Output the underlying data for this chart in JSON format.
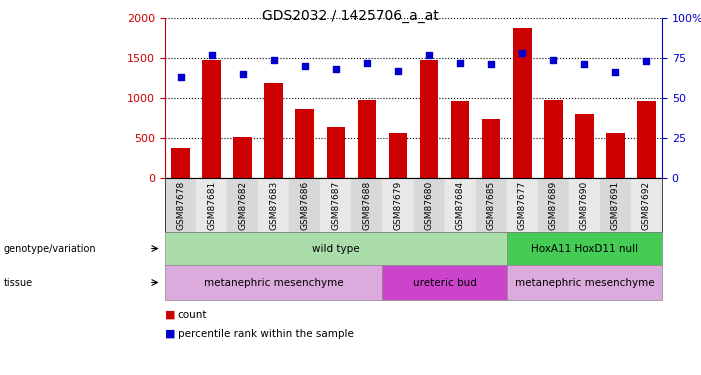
{
  "title": "GDS2032 / 1425706_a_at",
  "samples": [
    "GSM87678",
    "GSM87681",
    "GSM87682",
    "GSM87683",
    "GSM87686",
    "GSM87687",
    "GSM87688",
    "GSM87679",
    "GSM87680",
    "GSM87684",
    "GSM87685",
    "GSM87677",
    "GSM87689",
    "GSM87690",
    "GSM87691",
    "GSM87692"
  ],
  "counts": [
    370,
    1470,
    510,
    1190,
    860,
    635,
    970,
    560,
    1480,
    960,
    740,
    1870,
    970,
    800,
    560,
    960
  ],
  "percentiles": [
    63,
    77,
    65,
    74,
    70,
    68,
    72,
    67,
    77,
    72,
    71,
    78,
    74,
    71,
    66,
    73
  ],
  "bar_color": "#cc0000",
  "dot_color": "#0000cc",
  "ylim_left": [
    0,
    2000
  ],
  "ylim_right": [
    0,
    100
  ],
  "yticks_left": [
    0,
    500,
    1000,
    1500,
    2000
  ],
  "yticks_right": [
    0,
    25,
    50,
    75,
    100
  ],
  "ytick_labels_right": [
    "0",
    "25",
    "50",
    "75",
    "100%"
  ],
  "genotype_groups": [
    {
      "label": "wild type",
      "start": 0,
      "end": 11,
      "color": "#aaddaa"
    },
    {
      "label": "HoxA11 HoxD11 null",
      "start": 11,
      "end": 16,
      "color": "#44cc55"
    }
  ],
  "tissue_groups": [
    {
      "label": "metanephric mesenchyme",
      "start": 0,
      "end": 7,
      "color": "#ddaadd"
    },
    {
      "label": "ureteric bud",
      "start": 7,
      "end": 11,
      "color": "#cc44cc"
    },
    {
      "label": "metanephric mesenchyme",
      "start": 11,
      "end": 16,
      "color": "#ddaadd"
    }
  ],
  "tick_bg_even": "#e0e0e0",
  "tick_bg_odd": "#f0f0f0",
  "legend_count_color": "#cc0000",
  "legend_dot_color": "#0000cc"
}
